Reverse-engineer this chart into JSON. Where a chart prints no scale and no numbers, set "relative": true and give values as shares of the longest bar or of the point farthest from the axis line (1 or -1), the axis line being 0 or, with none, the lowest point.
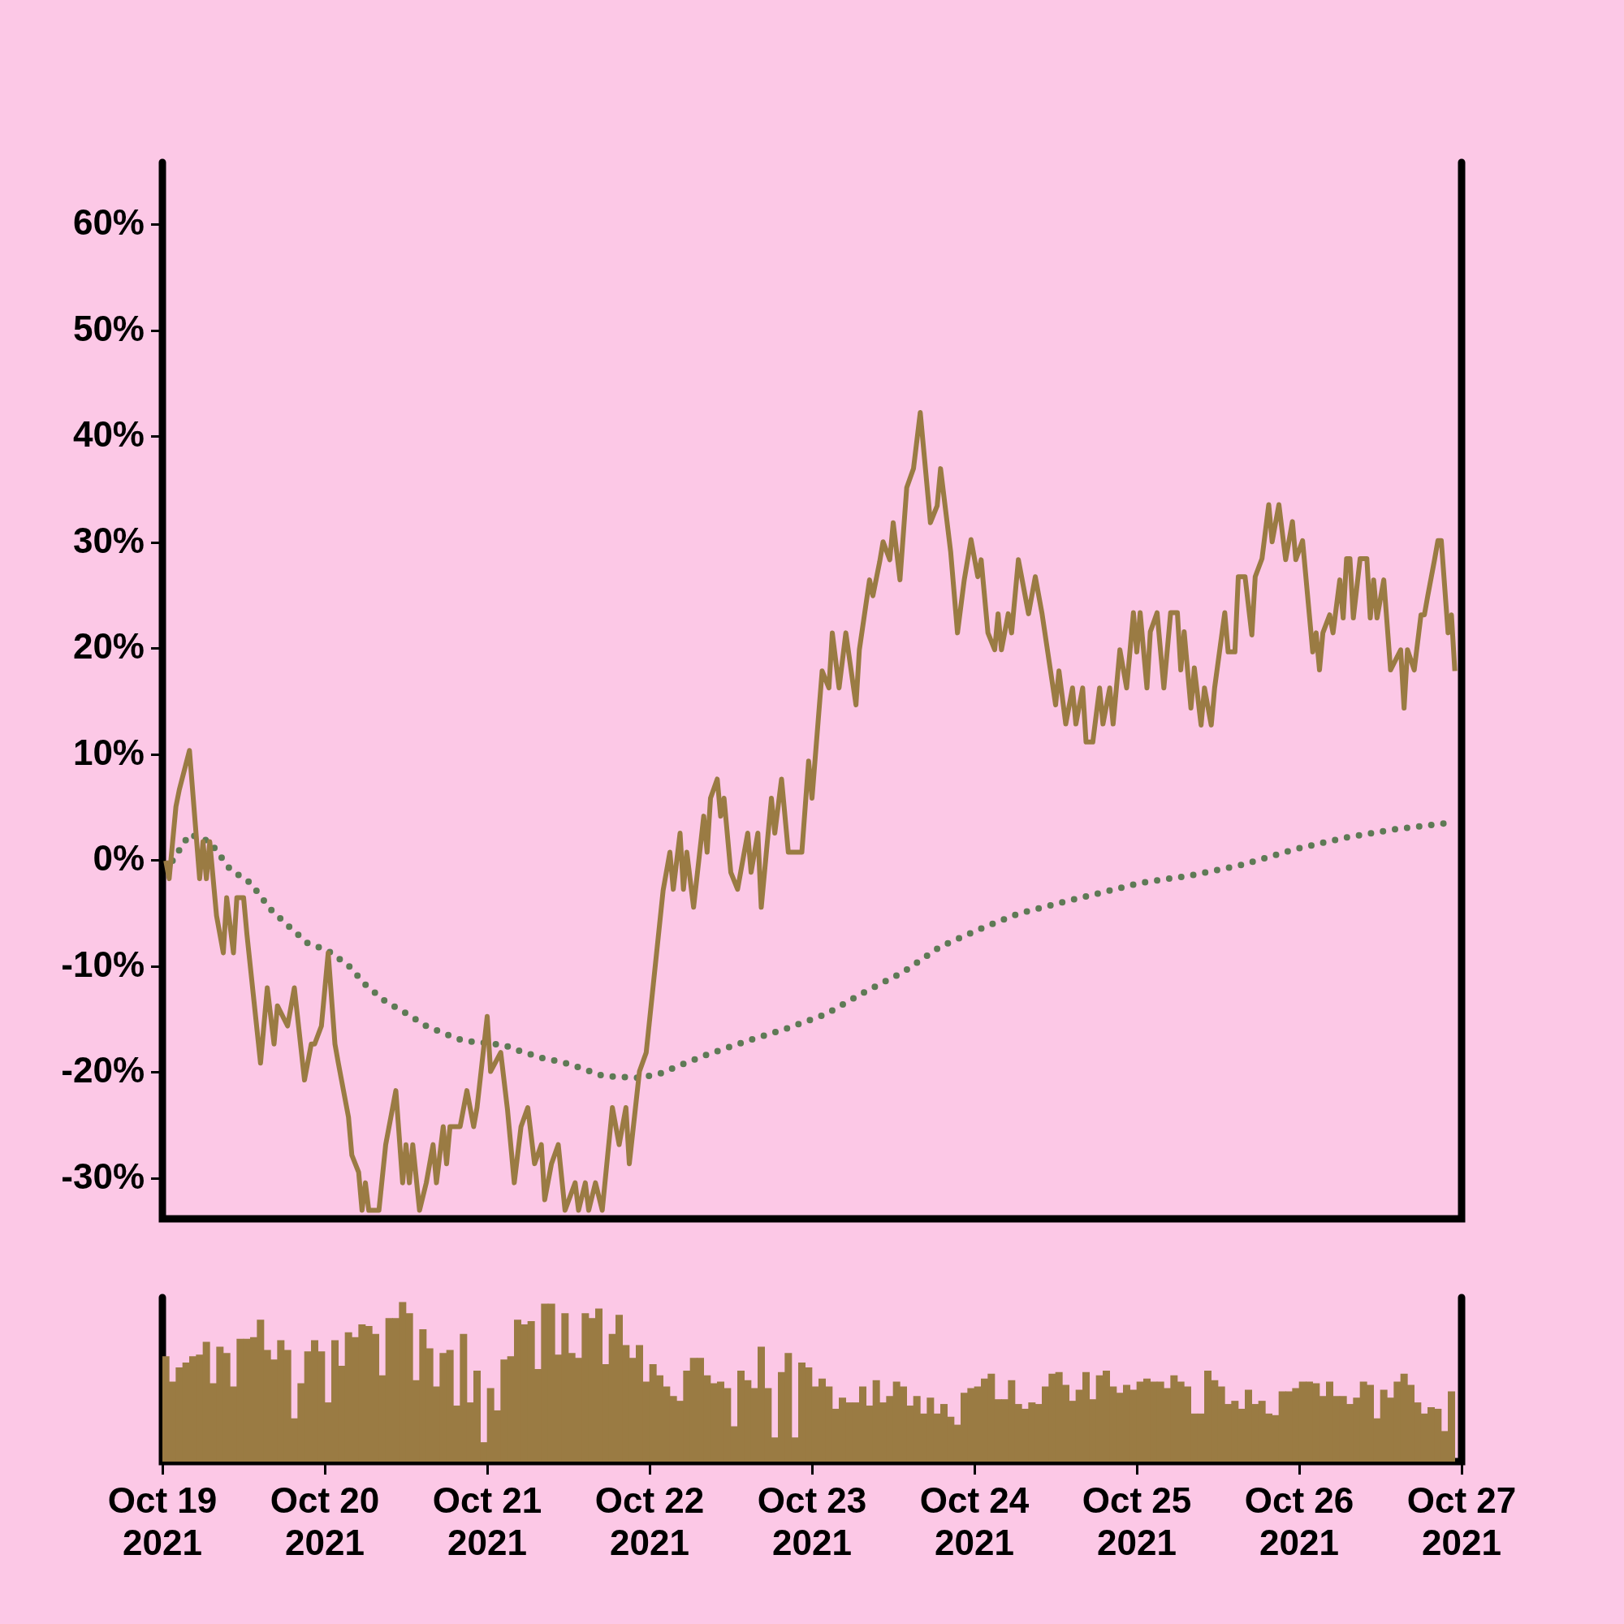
{
  "chart_data": [
    {
      "type": "line",
      "xlim": [
        "2021-10-19",
        "2021-10-27"
      ],
      "ylim": [
        -33.8,
        65.9
      ],
      "yticks": [
        {
          "value": -30,
          "label": "-30%"
        },
        {
          "value": -20,
          "label": "-20%"
        },
        {
          "value": -10,
          "label": "-10%"
        },
        {
          "value": 0,
          "label": "0%"
        },
        {
          "value": 10,
          "label": "10%"
        },
        {
          "value": 20,
          "label": "20%"
        },
        {
          "value": 30,
          "label": "30%"
        },
        {
          "value": 40,
          "label": "40%"
        },
        {
          "value": 50,
          "label": "50%"
        },
        {
          "value": 60,
          "label": "60%"
        }
      ],
      "tick_labels": "y",
      "grid": false,
      "legend": false,
      "marker": "none",
      "series": [
        {
          "color": "#9a7b43",
          "line_style": "solid",
          "x": [
            "2021-10-19T00:30",
            "2021-10-19T01:00",
            "2021-10-19T02:00",
            "2021-10-19T02:30",
            "2021-10-19T04:00",
            "2021-10-19T05:30",
            "2021-10-19T06:00",
            "2021-10-19T06:30",
            "2021-10-19T07:00",
            "2021-10-19T08:00",
            "2021-10-19T09:00",
            "2021-10-19T09:30",
            "2021-10-19T10:30",
            "2021-10-19T11:00",
            "2021-10-19T12:00",
            "2021-10-19T12:30",
            "2021-10-19T14:30",
            "2021-10-19T15:30",
            "2021-10-19T16:30",
            "2021-10-19T17:00",
            "2021-10-19T18:30",
            "2021-10-19T19:30",
            "2021-10-19T21:00",
            "2021-10-19T22:00",
            "2021-10-19T22:30",
            "2021-10-19T23:30",
            "2021-10-20T00:30",
            "2021-10-20T01:30",
            "2021-10-20T02:00",
            "2021-10-20T03:30",
            "2021-10-20T04:00",
            "2021-10-20T05:00",
            "2021-10-20T05:30",
            "2021-10-20T06:00",
            "2021-10-20T06:30",
            "2021-10-20T08:00",
            "2021-10-20T09:00",
            "2021-10-20T10:30",
            "2021-10-20T11:30",
            "2021-10-20T12:00",
            "2021-10-20T12:30",
            "2021-10-20T13:00",
            "2021-10-20T14:00",
            "2021-10-20T15:00",
            "2021-10-20T16:00",
            "2021-10-20T16:30",
            "2021-10-20T17:30",
            "2021-10-20T18:00",
            "2021-10-20T18:30",
            "2021-10-20T20:00",
            "2021-10-20T21:00",
            "2021-10-20T22:00",
            "2021-10-20T22:30",
            "2021-10-21T00:00",
            "2021-10-21T00:30",
            "2021-10-21T02:00",
            "2021-10-21T03:00",
            "2021-10-21T04:00",
            "2021-10-21T05:00",
            "2021-10-21T06:00",
            "2021-10-21T07:00",
            "2021-10-21T08:00",
            "2021-10-21T08:30",
            "2021-10-21T09:30",
            "2021-10-21T10:30",
            "2021-10-21T11:30",
            "2021-10-21T13:00",
            "2021-10-21T13:30",
            "2021-10-21T14:30",
            "2021-10-21T15:00",
            "2021-10-21T16:00",
            "2021-10-21T17:00",
            "2021-10-21T18:30",
            "2021-10-21T19:30",
            "2021-10-21T20:30",
            "2021-10-21T21:00",
            "2021-10-21T22:30",
            "2021-10-21T23:30",
            "2021-10-22T02:00",
            "2021-10-22T03:00",
            "2021-10-22T03:30",
            "2021-10-22T04:30",
            "2021-10-22T05:00",
            "2021-10-22T05:30",
            "2021-10-22T06:30",
            "2021-10-22T08:00",
            "2021-10-22T08:30",
            "2021-10-22T09:00",
            "2021-10-22T10:00",
            "2021-10-22T10:30",
            "2021-10-22T11:00",
            "2021-10-22T12:00",
            "2021-10-22T13:00",
            "2021-10-22T14:30",
            "2021-10-22T15:00",
            "2021-10-22T16:00",
            "2021-10-22T16:30",
            "2021-10-22T18:00",
            "2021-10-22T18:30",
            "2021-10-22T19:30",
            "2021-10-22T20:30",
            "2021-10-22T22:30",
            "2021-10-22T23:30",
            "2021-10-23T00:00",
            "2021-10-23T01:30",
            "2021-10-23T02:30",
            "2021-10-23T03:00",
            "2021-10-23T04:00",
            "2021-10-23T05:00",
            "2021-10-23T06:30",
            "2021-10-23T07:00",
            "2021-10-23T08:30",
            "2021-10-23T09:00",
            "2021-10-23T10:00",
            "2021-10-23T10:30",
            "2021-10-23T11:30",
            "2021-10-23T12:00",
            "2021-10-23T13:00",
            "2021-10-23T14:00",
            "2021-10-23T15:00",
            "2021-10-23T16:00",
            "2021-10-23T17:30",
            "2021-10-23T18:30",
            "2021-10-23T19:00",
            "2021-10-23T20:30",
            "2021-10-23T21:30",
            "2021-10-23T22:30",
            "2021-10-23T23:30",
            "2021-10-24T00:30",
            "2021-10-24T01:00",
            "2021-10-24T02:00",
            "2021-10-24T03:00",
            "2021-10-24T03:30",
            "2021-10-24T04:00",
            "2021-10-24T05:00",
            "2021-10-24T05:30",
            "2021-10-24T06:30",
            "2021-10-24T08:00",
            "2021-10-24T09:00",
            "2021-10-24T10:00",
            "2021-10-24T12:00",
            "2021-10-24T12:30",
            "2021-10-24T13:30",
            "2021-10-24T14:30",
            "2021-10-24T15:00",
            "2021-10-24T16:00",
            "2021-10-24T16:30",
            "2021-10-24T17:30",
            "2021-10-24T18:30",
            "2021-10-24T19:00",
            "2021-10-24T20:00",
            "2021-10-24T20:30",
            "2021-10-24T21:30",
            "2021-10-24T22:30",
            "2021-10-24T23:30",
            "2021-10-25T00:00",
            "2021-10-25T00:30",
            "2021-10-25T01:30",
            "2021-10-25T02:00",
            "2021-10-25T03:00",
            "2021-10-25T04:00",
            "2021-10-25T05:00",
            "2021-10-25T06:00",
            "2021-10-25T06:30",
            "2021-10-25T07:00",
            "2021-10-25T08:00",
            "2021-10-25T08:30",
            "2021-10-25T09:30",
            "2021-10-25T10:00",
            "2021-10-25T11:00",
            "2021-10-25T11:30",
            "2021-10-25T13:00",
            "2021-10-25T13:30",
            "2021-10-25T14:30",
            "2021-10-25T15:00",
            "2021-10-25T16:00",
            "2021-10-25T17:00",
            "2021-10-25T17:30",
            "2021-10-25T18:30",
            "2021-10-25T19:30",
            "2021-10-25T20:00",
            "2021-10-25T21:00",
            "2021-10-25T22:00",
            "2021-10-25T23:00",
            "2021-10-25T23:30",
            "2021-10-26T00:30",
            "2021-10-26T02:00",
            "2021-10-26T02:30",
            "2021-10-26T03:00",
            "2021-10-26T03:30",
            "2021-10-26T04:30",
            "2021-10-26T05:00",
            "2021-10-26T06:00",
            "2021-10-26T06:30",
            "2021-10-26T07:00",
            "2021-10-26T07:30",
            "2021-10-26T08:00",
            "2021-10-26T09:00",
            "2021-10-26T10:00",
            "2021-10-26T10:30",
            "2021-10-26T11:00",
            "2021-10-26T11:30",
            "2021-10-26T12:30",
            "2021-10-26T13:30",
            "2021-10-26T15:00",
            "2021-10-26T15:30",
            "2021-10-26T16:00",
            "2021-10-26T17:00",
            "2021-10-26T18:00",
            "2021-10-26T18:30",
            "2021-10-26T19:00",
            "2021-10-26T20:00",
            "2021-10-26T20:30",
            "2021-10-26T21:00",
            "2021-10-26T22:00",
            "2021-10-26T22:30",
            "2021-10-26T23:00"
          ],
          "values": [
            0,
            -1.7,
            5.1,
            6.7,
            10.4,
            -1.7,
            1.8,
            -1.7,
            1.8,
            -5.2,
            -8.7,
            -3.5,
            -8.7,
            -3.5,
            -3.5,
            -7.0,
            -19.1,
            -12.0,
            -17.3,
            -13.7,
            -15.6,
            -12.0,
            -20.7,
            -17.3,
            -17.3,
            -15.6,
            -8.7,
            -17.3,
            -19.1,
            -24.2,
            -27.8,
            -29.4,
            -33.0,
            -30.4,
            -33.0,
            -33.0,
            -26.8,
            -21.7,
            -30.4,
            -26.8,
            -30.4,
            -26.8,
            -33.0,
            -30.4,
            -26.8,
            -30.4,
            -25.1,
            -28.6,
            -25.1,
            -25.1,
            -21.7,
            -25.1,
            -23.3,
            -14.7,
            -19.9,
            -18.1,
            -23.5,
            -30.4,
            -25.1,
            -23.3,
            -28.6,
            -26.8,
            -32.0,
            -28.6,
            -26.8,
            -33.0,
            -30.4,
            -33.0,
            -30.4,
            -33.0,
            -30.4,
            -33.0,
            -23.3,
            -26.8,
            -23.3,
            -28.6,
            -19.9,
            -18.1,
            -2.8,
            0.8,
            -2.7,
            2.6,
            -2.7,
            0.8,
            -4.4,
            4.2,
            0.8,
            5.9,
            7.7,
            4.2,
            5.9,
            -1.1,
            -2.7,
            2.6,
            -1.1,
            2.6,
            -4.4,
            5.9,
            2.6,
            7.7,
            0.8,
            0.8,
            9.4,
            5.9,
            17.9,
            16.3,
            21.5,
            16.3,
            21.5,
            14.7,
            19.9,
            26.5,
            25.0,
            28.2,
            30.1,
            28.4,
            31.9,
            26.5,
            35.2,
            37.0,
            42.3,
            31.9,
            33.5,
            37.0,
            29.1,
            21.5,
            26.5,
            30.3,
            26.8,
            28.4,
            21.5,
            19.9,
            23.3,
            19.9,
            23.3,
            21.5,
            28.4,
            23.3,
            26.8,
            23.3,
            14.7,
            17.9,
            12.9,
            16.3,
            12.9,
            16.3,
            11.2,
            11.2,
            16.3,
            12.9,
            16.3,
            12.9,
            19.9,
            16.3,
            23.4,
            19.7,
            23.4,
            16.3,
            21.6,
            23.4,
            16.3,
            23.4,
            23.4,
            18.0,
            21.6,
            14.4,
            18.2,
            12.8,
            16.3,
            12.8,
            16.3,
            23.4,
            19.7,
            19.7,
            26.8,
            26.8,
            21.3,
            26.8,
            28.5,
            33.6,
            30.1,
            33.6,
            28.4,
            32.0,
            28.4,
            30.2,
            19.7,
            21.5,
            18.0,
            21.5,
            23.2,
            21.5,
            26.5,
            22.9,
            28.5,
            28.5,
            22.9,
            28.5,
            28.5,
            22.9,
            26.5,
            22.9,
            26.5,
            18.0,
            19.9,
            14.4,
            19.9,
            18.0,
            23.2,
            23.2,
            25.0,
            28.4,
            30.2,
            30.2,
            21.5,
            23.2,
            17.9
          ]
        },
        {
          "color": "#5e7a55",
          "line_style": "dotted",
          "x": [
            "2021-10-19T01:30",
            "2021-10-19T04:00",
            "2021-10-19T07:00",
            "2021-10-19T10:00",
            "2021-10-19T13:00",
            "2021-10-19T16:00",
            "2021-10-19T18:30",
            "2021-10-19T21:30",
            "2021-10-20T00:30",
            "2021-10-20T03:30",
            "2021-10-20T06:00",
            "2021-10-20T09:00",
            "2021-10-20T12:00",
            "2021-10-20T15:00",
            "2021-10-20T18:00",
            "2021-10-20T20:30",
            "2021-10-20T23:30",
            "2021-10-21T02:30",
            "2021-10-21T05:00",
            "2021-10-21T08:00",
            "2021-10-21T11:00",
            "2021-10-21T14:00",
            "2021-10-21T17:00",
            "2021-10-21T19:30",
            "2021-10-21T22:30",
            "2021-10-22T01:30",
            "2021-10-22T04:30",
            "2021-10-22T08:30",
            "2021-10-22T14:30",
            "2021-10-22T20:00",
            "2021-10-23T02:00",
            "2021-10-23T07:30",
            "2021-10-23T13:30",
            "2021-10-23T19:00",
            "2021-10-24T01:00",
            "2021-10-24T06:30",
            "2021-10-24T12:30",
            "2021-10-24T19:30",
            "2021-10-25T00:30",
            "2021-10-25T08:00",
            "2021-10-25T15:30",
            "2021-10-25T23:30",
            "2021-10-26T07:00",
            "2021-10-26T14:30",
            "2021-10-26T22:30"
          ],
          "values": [
            0,
            2.5,
            1.8,
            -0.8,
            -2.1,
            -4.6,
            -6.1,
            -7.8,
            -8.5,
            -9.9,
            -11.7,
            -13.3,
            -14.4,
            -15.6,
            -16.4,
            -17.0,
            -17.2,
            -17.4,
            -18.0,
            -18.6,
            -19.0,
            -19.6,
            -20.3,
            -20.4,
            -20.5,
            -20.1,
            -19.3,
            -18.3,
            -17.0,
            -15.9,
            -14.5,
            -12.5,
            -10.5,
            -8.1,
            -6.4,
            -5.0,
            -4.0,
            -2.9,
            -2.1,
            -1.4,
            -0.4,
            1.1,
            2.2,
            3.0,
            3.6
          ]
        }
      ]
    },
    {
      "type": "bar",
      "relative": true,
      "color": "#9a7b43",
      "xlim": [
        "2021-10-19",
        "2021-10-27"
      ],
      "xticks": [
        {
          "value": "2021-10-19",
          "label": "Oct 19 2021"
        },
        {
          "value": "2021-10-20",
          "label": "Oct 20 2021"
        },
        {
          "value": "2021-10-21",
          "label": "Oct 21 2021"
        },
        {
          "value": "2021-10-22",
          "label": "Oct 22 2021"
        },
        {
          "value": "2021-10-23",
          "label": "Oct 23 2021"
        },
        {
          "value": "2021-10-24",
          "label": "Oct 24 2021"
        },
        {
          "value": "2021-10-25",
          "label": "Oct 25 2021"
        },
        {
          "value": "2021-10-26",
          "label": "Oct 26 2021"
        },
        {
          "value": "2021-10-27",
          "label": "Oct 27 2021"
        }
      ],
      "tick_labels": "x",
      "grid": false,
      "legend": false,
      "x": [
        "2021-10-19T00:30",
        "2021-10-19T01:30",
        "2021-10-19T02:30",
        "2021-10-19T03:30",
        "2021-10-19T04:30",
        "2021-10-19T05:30",
        "2021-10-19T06:30",
        "2021-10-19T07:30",
        "2021-10-19T08:30",
        "2021-10-19T09:30",
        "2021-10-19T10:30",
        "2021-10-19T11:30",
        "2021-10-19T12:30",
        "2021-10-19T13:30",
        "2021-10-19T14:30",
        "2021-10-19T15:30",
        "2021-10-19T16:30",
        "2021-10-19T17:30",
        "2021-10-19T18:30",
        "2021-10-19T19:30",
        "2021-10-19T20:30",
        "2021-10-19T21:30",
        "2021-10-19T22:30",
        "2021-10-19T23:30",
        "2021-10-20T00:30",
        "2021-10-20T01:30",
        "2021-10-20T02:30",
        "2021-10-20T03:30",
        "2021-10-20T04:30",
        "2021-10-20T05:30",
        "2021-10-20T06:30",
        "2021-10-20T07:30",
        "2021-10-20T08:30",
        "2021-10-20T09:30",
        "2021-10-20T10:30",
        "2021-10-20T11:30",
        "2021-10-20T12:30",
        "2021-10-20T13:30",
        "2021-10-20T14:30",
        "2021-10-20T15:30",
        "2021-10-20T16:30",
        "2021-10-20T17:30",
        "2021-10-20T18:30",
        "2021-10-20T19:30",
        "2021-10-20T20:30",
        "2021-10-20T21:30",
        "2021-10-20T22:30",
        "2021-10-20T23:30",
        "2021-10-21T00:30",
        "2021-10-21T01:30",
        "2021-10-21T02:30",
        "2021-10-21T03:30",
        "2021-10-21T04:30",
        "2021-10-21T05:30",
        "2021-10-21T06:30",
        "2021-10-21T07:30",
        "2021-10-21T08:30",
        "2021-10-21T09:30",
        "2021-10-21T10:30",
        "2021-10-21T11:30",
        "2021-10-21T12:30",
        "2021-10-21T13:30",
        "2021-10-21T14:30",
        "2021-10-21T15:30",
        "2021-10-21T16:30",
        "2021-10-21T17:30",
        "2021-10-21T18:30",
        "2021-10-21T19:30",
        "2021-10-21T20:30",
        "2021-10-21T21:30",
        "2021-10-21T22:30",
        "2021-10-21T23:30",
        "2021-10-22T00:30",
        "2021-10-22T01:30",
        "2021-10-22T02:30",
        "2021-10-22T03:30",
        "2021-10-22T04:30",
        "2021-10-22T05:30",
        "2021-10-22T06:30",
        "2021-10-22T07:30",
        "2021-10-22T08:30",
        "2021-10-22T09:30",
        "2021-10-22T10:30",
        "2021-10-22T11:30",
        "2021-10-22T12:30",
        "2021-10-22T13:30",
        "2021-10-22T14:30",
        "2021-10-22T15:30",
        "2021-10-22T16:30",
        "2021-10-22T17:30",
        "2021-10-22T18:30",
        "2021-10-22T19:30",
        "2021-10-22T20:30",
        "2021-10-22T21:30",
        "2021-10-22T22:30",
        "2021-10-22T23:30",
        "2021-10-23T00:30",
        "2021-10-23T01:30",
        "2021-10-23T02:30",
        "2021-10-23T03:30",
        "2021-10-23T04:30",
        "2021-10-23T05:30",
        "2021-10-23T06:30",
        "2021-10-23T07:30",
        "2021-10-23T08:30",
        "2021-10-23T09:30",
        "2021-10-23T10:30",
        "2021-10-23T11:30",
        "2021-10-23T12:30",
        "2021-10-23T13:30",
        "2021-10-23T14:30",
        "2021-10-23T15:30",
        "2021-10-23T16:30",
        "2021-10-23T17:30",
        "2021-10-23T18:30",
        "2021-10-23T19:30",
        "2021-10-23T20:30",
        "2021-10-23T21:30",
        "2021-10-23T22:30",
        "2021-10-23T23:30",
        "2021-10-24T00:30",
        "2021-10-24T01:30",
        "2021-10-24T02:30",
        "2021-10-24T03:30",
        "2021-10-24T04:30",
        "2021-10-24T05:30",
        "2021-10-24T06:30",
        "2021-10-24T07:30",
        "2021-10-24T08:30",
        "2021-10-24T09:30",
        "2021-10-24T10:30",
        "2021-10-24T11:30",
        "2021-10-24T12:30",
        "2021-10-24T13:30",
        "2021-10-24T14:30",
        "2021-10-24T15:30",
        "2021-10-24T16:30",
        "2021-10-24T17:30",
        "2021-10-24T18:30",
        "2021-10-24T19:30",
        "2021-10-24T20:30",
        "2021-10-24T21:30",
        "2021-10-24T22:30",
        "2021-10-24T23:30",
        "2021-10-25T00:30",
        "2021-10-25T01:30",
        "2021-10-25T02:30",
        "2021-10-25T03:30",
        "2021-10-25T04:30",
        "2021-10-25T05:30",
        "2021-10-25T06:30",
        "2021-10-25T07:30",
        "2021-10-25T08:30",
        "2021-10-25T09:30",
        "2021-10-25T10:30",
        "2021-10-25T11:30",
        "2021-10-25T12:30",
        "2021-10-25T13:30",
        "2021-10-25T14:30",
        "2021-10-25T15:30",
        "2021-10-25T16:30",
        "2021-10-25T17:30",
        "2021-10-25T18:30",
        "2021-10-25T19:30",
        "2021-10-25T20:30",
        "2021-10-25T21:30",
        "2021-10-25T22:30",
        "2021-10-25T23:30",
        "2021-10-26T00:30",
        "2021-10-26T01:30",
        "2021-10-26T02:30",
        "2021-10-26T03:30",
        "2021-10-26T04:30",
        "2021-10-26T05:30",
        "2021-10-26T06:30",
        "2021-10-26T07:30",
        "2021-10-26T08:30",
        "2021-10-26T09:30",
        "2021-10-26T10:30",
        "2021-10-26T11:30",
        "2021-10-26T12:30",
        "2021-10-26T13:30",
        "2021-10-26T14:30",
        "2021-10-26T15:30",
        "2021-10-26T16:30",
        "2021-10-26T17:30",
        "2021-10-26T18:30",
        "2021-10-26T19:30",
        "2021-10-26T20:30",
        "2021-10-26T21:30",
        "2021-10-26T22:30"
      ],
      "values": [
        0.66,
        0.5,
        0.59,
        0.62,
        0.66,
        0.67,
        0.75,
        0.49,
        0.72,
        0.68,
        0.47,
        0.77,
        0.77,
        0.78,
        0.89,
        0.7,
        0.64,
        0.76,
        0.7,
        0.27,
        0.49,
        0.69,
        0.76,
        0.69,
        0.37,
        0.76,
        0.6,
        0.81,
        0.78,
        0.86,
        0.85,
        0.8,
        0.54,
        0.9,
        0.9,
        1,
        0.93,
        0.51,
        0.83,
        0.71,
        0.47,
        0.68,
        0.7,
        0.35,
        0.8,
        0.37,
        0.57,
        0.12,
        0.46,
        0.32,
        0.64,
        0.66,
        0.89,
        0.86,
        0.88,
        0.58,
        0.99,
        0.99,
        0.67,
        0.93,
        0.68,
        0.65,
        0.93,
        0.9,
        0.96,
        0.61,
        0.8,
        0.92,
        0.73,
        0.65,
        0.73,
        0.5,
        0.61,
        0.54,
        0.47,
        0.41,
        0.38,
        0.57,
        0.65,
        0.65,
        0.54,
        0.49,
        0.5,
        0.46,
        0.22,
        0.57,
        0.51,
        0.46,
        0.72,
        0.46,
        0.15,
        0.56,
        0.68,
        0.15,
        0.62,
        0.59,
        0.47,
        0.52,
        0.47,
        0.33,
        0.4,
        0.37,
        0.37,
        0.47,
        0.35,
        0.51,
        0.37,
        0.41,
        0.5,
        0.47,
        0.35,
        0.41,
        0.3,
        0.4,
        0.3,
        0.36,
        0.28,
        0.23,
        0.43,
        0.46,
        0.47,
        0.52,
        0.55,
        0.39,
        0.39,
        0.51,
        0.36,
        0.33,
        0.37,
        0.36,
        0.47,
        0.55,
        0.56,
        0.48,
        0.38,
        0.45,
        0.56,
        0.39,
        0.54,
        0.57,
        0.47,
        0.43,
        0.48,
        0.45,
        0.5,
        0.52,
        0.5,
        0.5,
        0.46,
        0.54,
        0.5,
        0.47,
        0.3,
        0.3,
        0.57,
        0.51,
        0.47,
        0.36,
        0.38,
        0.33,
        0.45,
        0.36,
        0.38,
        0.3,
        0.29,
        0.44,
        0.44,
        0.46,
        0.5,
        0.5,
        0.49,
        0.41,
        0.5,
        0.41,
        0.41,
        0.36,
        0.4,
        0.5,
        0.48,
        0.27,
        0.45,
        0.4,
        0.5,
        0.55,
        0.48,
        0.37,
        0.3,
        0.34,
        0.33,
        0.19,
        0.44
      ]
    }
  ]
}
